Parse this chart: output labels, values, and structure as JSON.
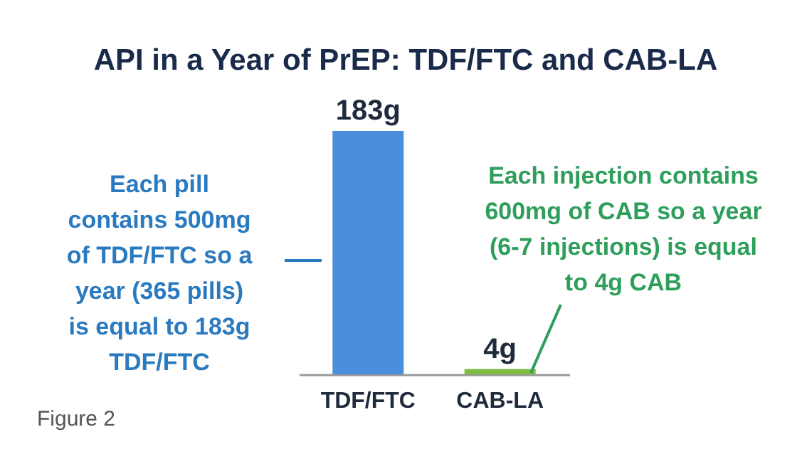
{
  "chart_data": {
    "type": "bar",
    "title": "API in a Year of PrEP: TDF/FTC and CAB-LA",
    "categories": [
      "TDF/FTC",
      "CAB-LA"
    ],
    "values": [
      183,
      4
    ],
    "colors": [
      "#4a8fdb",
      "#7dbb42"
    ],
    "value_labels": [
      "183g",
      "4g"
    ],
    "grid": false,
    "annotations": [
      "Each pill\ncontains 500mg\nof TDF/FTC so a\nyear (365 pills)\nis equal to 183g\nTDF/FTC",
      "Each injection contains\n600mg of CAB so a year\n(6-7 injections) is equal\nto 4g CAB",
      "Figure 2"
    ]
  }
}
